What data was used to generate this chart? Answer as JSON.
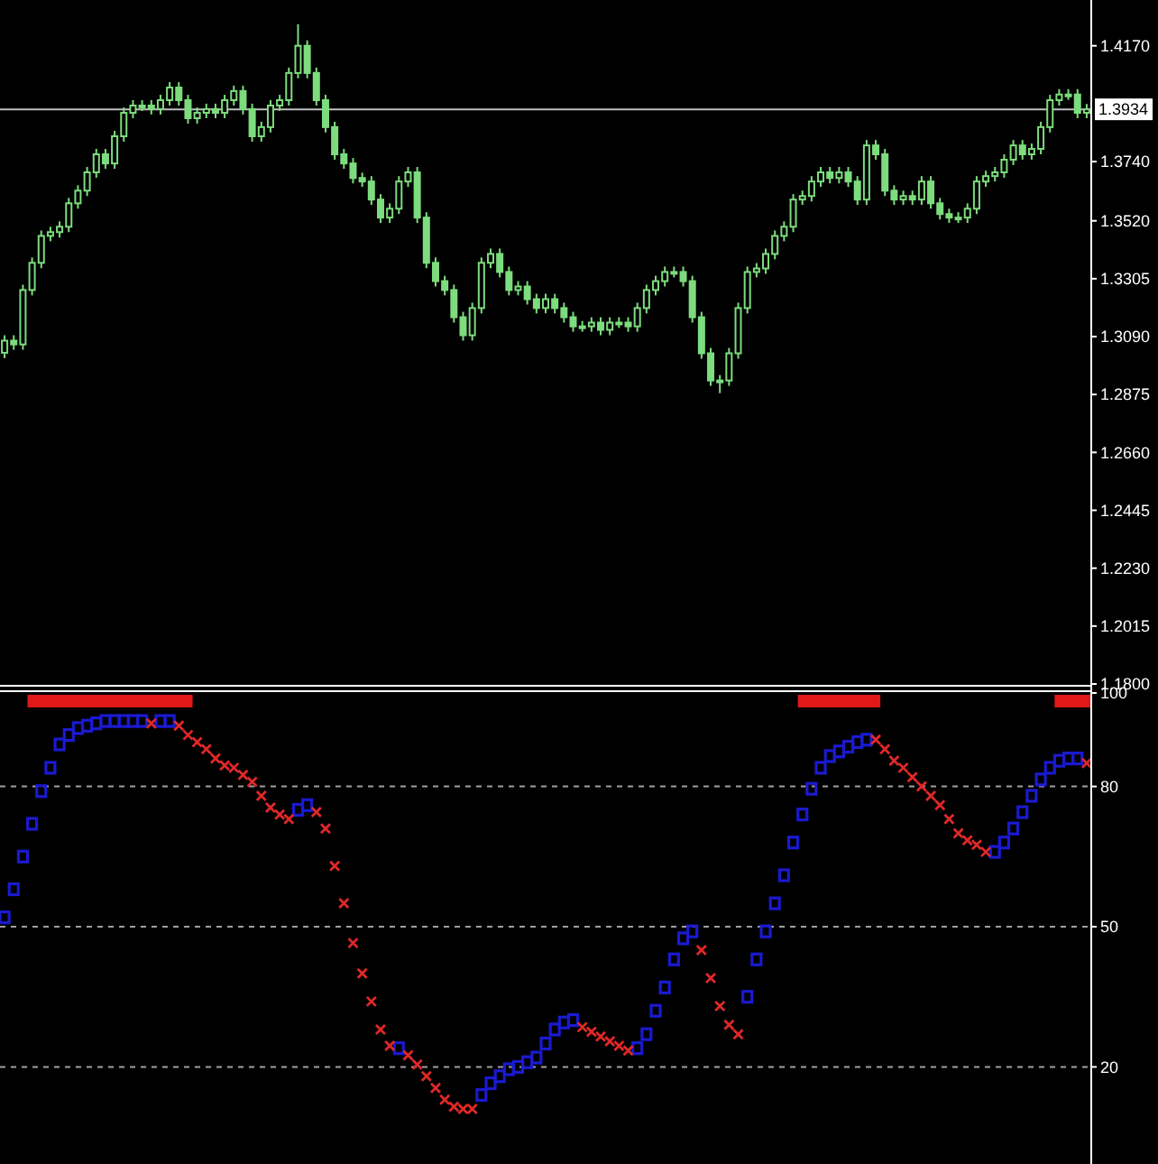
{
  "chart_data": [
    {
      "type": "candlestick",
      "color": "#7ddc7d",
      "tick_labels": "y",
      "categories": [
        null,
        null,
        null,
        null,
        null,
        null,
        null,
        null,
        null,
        null,
        null,
        null,
        null,
        null,
        null,
        null,
        null,
        null,
        null,
        null,
        null,
        null,
        null,
        null,
        null,
        null,
        null,
        null,
        null,
        null,
        null,
        null,
        null,
        null,
        null,
        null,
        null,
        null,
        null,
        null,
        null,
        null,
        null,
        null,
        null,
        null,
        null,
        null,
        null,
        null,
        null,
        null,
        null,
        null,
        null,
        null,
        null,
        null,
        null,
        null,
        null,
        null,
        null,
        null,
        null,
        null,
        null,
        null,
        null,
        null,
        null,
        null,
        null,
        null,
        null,
        null,
        null,
        null,
        null,
        null,
        null,
        null,
        null,
        null,
        null,
        null,
        null,
        null,
        null,
        null,
        null,
        null,
        null,
        null,
        null,
        null,
        null,
        null,
        null,
        null,
        null,
        null,
        null,
        null,
        null,
        null,
        null,
        null,
        null,
        null,
        null,
        null,
        null,
        null,
        null,
        null,
        null,
        null,
        null
      ],
      "ylim": [
        1.18,
        1.434
      ],
      "yticks": [
        {
          "value": 1.18,
          "label": "1.1800"
        },
        1.2015,
        {
          "value": 1.223,
          "label": "1.2230"
        },
        1.2445,
        {
          "value": 1.266,
          "label": "1.2660"
        },
        1.2875,
        {
          "value": 1.309,
          "label": "1.3090"
        },
        1.3305,
        {
          "value": 1.352,
          "label": "1.3520"
        },
        {
          "value": 1.374,
          "label": "1.3740"
        },
        {
          "value": 1.417,
          "label": "1.4170"
        }
      ],
      "ref_lines": [
        {
          "axis": "y",
          "value": 1.3934,
          "label": "1.3934",
          "color": "#c0c0c0"
        }
      ],
      "ohlc": [
        [
          1.303,
          1.3095,
          1.301,
          1.3075
        ],
        [
          1.3075,
          1.3095,
          1.3041,
          1.3061
        ],
        [
          1.3061,
          1.3283,
          1.3041,
          1.3263
        ],
        [
          1.3263,
          1.3384,
          1.3243,
          1.3364
        ],
        [
          1.3364,
          1.3484,
          1.3344,
          1.3464
        ],
        [
          1.3464,
          1.3498,
          1.3444,
          1.3478
        ],
        [
          1.3478,
          1.3518,
          1.3458,
          1.3498
        ],
        [
          1.3498,
          1.3605,
          1.3478,
          1.3585
        ],
        [
          1.3585,
          1.3652,
          1.3565,
          1.3632
        ],
        [
          1.3632,
          1.372,
          1.3612,
          1.37
        ],
        [
          1.37,
          1.3787,
          1.368,
          1.3767
        ],
        [
          1.3767,
          1.3787,
          1.3713,
          1.3733
        ],
        [
          1.3733,
          1.3854,
          1.3713,
          1.3834
        ],
        [
          1.3834,
          1.3941,
          1.3814,
          1.3921
        ],
        [
          1.3921,
          1.3968,
          1.3901,
          1.3948
        ],
        [
          1.3948,
          1.3968,
          1.3928,
          1.3948
        ],
        [
          1.3948,
          1.3968,
          1.3915,
          1.3935
        ],
        [
          1.3935,
          1.3988,
          1.3915,
          1.3968
        ],
        [
          1.3968,
          1.4035,
          1.3948,
          1.4015
        ],
        [
          1.4015,
          1.4035,
          1.3948,
          1.3968
        ],
        [
          1.3968,
          1.3988,
          1.3881,
          1.3901
        ],
        [
          1.3901,
          1.3941,
          1.3881,
          1.3921
        ],
        [
          1.3921,
          1.3955,
          1.3901,
          1.3935
        ],
        [
          1.3935,
          1.3955,
          1.3901,
          1.3921
        ],
        [
          1.3921,
          1.3988,
          1.3901,
          1.3968
        ],
        [
          1.3968,
          1.4022,
          1.3948,
          1.4002
        ],
        [
          1.4002,
          1.4022,
          1.3915,
          1.3935
        ],
        [
          1.3935,
          1.3955,
          1.3814,
          1.3834
        ],
        [
          1.3834,
          1.3888,
          1.3814,
          1.3868
        ],
        [
          1.3868,
          1.3968,
          1.3848,
          1.3948
        ],
        [
          1.3948,
          1.3988,
          1.3928,
          1.3968
        ],
        [
          1.3968,
          1.4089,
          1.3948,
          1.4069
        ],
        [
          1.4069,
          1.425,
          1.4049,
          1.417
        ],
        [
          1.417,
          1.419,
          1.4049,
          1.4069
        ],
        [
          1.4069,
          1.4089,
          1.3948,
          1.3968
        ],
        [
          1.3968,
          1.3988,
          1.3848,
          1.3868
        ],
        [
          1.3868,
          1.3888,
          1.3747,
          1.3767
        ],
        [
          1.3767,
          1.3787,
          1.3713,
          1.3733
        ],
        [
          1.3733,
          1.3753,
          1.3659,
          1.3679
        ],
        [
          1.3679,
          1.3699,
          1.3646,
          1.3666
        ],
        [
          1.3666,
          1.3686,
          1.3579,
          1.3599
        ],
        [
          1.3599,
          1.3619,
          1.3512,
          1.3532
        ],
        [
          1.3532,
          1.3585,
          1.3512,
          1.3565
        ],
        [
          1.3565,
          1.3686,
          1.3545,
          1.3666
        ],
        [
          1.3666,
          1.372,
          1.3646,
          1.37
        ],
        [
          1.37,
          1.372,
          1.3512,
          1.3532
        ],
        [
          1.3532,
          1.3552,
          1.3344,
          1.3364
        ],
        [
          1.3364,
          1.3384,
          1.3276,
          1.3296
        ],
        [
          1.3296,
          1.3316,
          1.3243,
          1.3263
        ],
        [
          1.3263,
          1.3283,
          1.3142,
          1.3162
        ],
        [
          1.3162,
          1.3182,
          1.3075,
          1.3095
        ],
        [
          1.3095,
          1.3216,
          1.3075,
          1.3196
        ],
        [
          1.3196,
          1.3384,
          1.3176,
          1.3364
        ],
        [
          1.3364,
          1.3417,
          1.3344,
          1.3397
        ],
        [
          1.3397,
          1.3417,
          1.331,
          1.333
        ],
        [
          1.333,
          1.335,
          1.3243,
          1.3263
        ],
        [
          1.3263,
          1.3296,
          1.3243,
          1.3276
        ],
        [
          1.3276,
          1.3296,
          1.3209,
          1.3229
        ],
        [
          1.3229,
          1.3249,
          1.3176,
          1.3196
        ],
        [
          1.3196,
          1.3249,
          1.3176,
          1.3229
        ],
        [
          1.3229,
          1.3249,
          1.3176,
          1.3196
        ],
        [
          1.3196,
          1.3216,
          1.3142,
          1.3162
        ],
        [
          1.3162,
          1.3182,
          1.3108,
          1.3128
        ],
        [
          1.3128,
          1.3148,
          1.3108,
          1.3128
        ],
        [
          1.3128,
          1.3162,
          1.3108,
          1.3142
        ],
        [
          1.3142,
          1.3162,
          1.3095,
          1.3115
        ],
        [
          1.3115,
          1.3162,
          1.3095,
          1.3142
        ],
        [
          1.3142,
          1.3162,
          1.3122,
          1.3142
        ],
        [
          1.3142,
          1.3162,
          1.3108,
          1.3128
        ],
        [
          1.3128,
          1.3216,
          1.3108,
          1.3196
        ],
        [
          1.3196,
          1.3283,
          1.3176,
          1.3263
        ],
        [
          1.3263,
          1.3316,
          1.3243,
          1.3296
        ],
        [
          1.3296,
          1.335,
          1.3276,
          1.333
        ],
        [
          1.333,
          1.335,
          1.331,
          1.333
        ],
        [
          1.333,
          1.335,
          1.3276,
          1.3296
        ],
        [
          1.3296,
          1.3316,
          1.3142,
          1.3162
        ],
        [
          1.3162,
          1.3182,
          1.3008,
          1.3028
        ],
        [
          1.3028,
          1.3048,
          1.2907,
          1.2927
        ],
        [
          1.2927,
          1.2947,
          1.288,
          1.2927
        ],
        [
          1.2927,
          1.3048,
          1.2907,
          1.3028
        ],
        [
          1.3028,
          1.3216,
          1.3008,
          1.3196
        ],
        [
          1.3196,
          1.335,
          1.3176,
          1.333
        ],
        [
          1.333,
          1.3363,
          1.331,
          1.3343
        ],
        [
          1.3343,
          1.3417,
          1.3323,
          1.3397
        ],
        [
          1.3397,
          1.3484,
          1.3377,
          1.3464
        ],
        [
          1.3464,
          1.3518,
          1.3444,
          1.3498
        ],
        [
          1.3498,
          1.3619,
          1.3478,
          1.3599
        ],
        [
          1.3599,
          1.3632,
          1.3579,
          1.3612
        ],
        [
          1.3612,
          1.3686,
          1.3592,
          1.3666
        ],
        [
          1.3666,
          1.372,
          1.3646,
          1.37
        ],
        [
          1.37,
          1.372,
          1.3659,
          1.3679
        ],
        [
          1.3679,
          1.372,
          1.3659,
          1.37
        ],
        [
          1.37,
          1.372,
          1.3646,
          1.3666
        ],
        [
          1.3666,
          1.3686,
          1.3579,
          1.3599
        ],
        [
          1.3599,
          1.382,
          1.3579,
          1.38
        ],
        [
          1.38,
          1.382,
          1.3747,
          1.3767
        ],
        [
          1.3767,
          1.3787,
          1.3612,
          1.3632
        ],
        [
          1.3632,
          1.3652,
          1.3579,
          1.3599
        ],
        [
          1.3599,
          1.3632,
          1.3579,
          1.3612
        ],
        [
          1.3612,
          1.3632,
          1.3579,
          1.3599
        ],
        [
          1.3599,
          1.3686,
          1.3579,
          1.3666
        ],
        [
          1.3666,
          1.3686,
          1.3565,
          1.3585
        ],
        [
          1.3585,
          1.3605,
          1.3525,
          1.3545
        ],
        [
          1.3545,
          1.3565,
          1.3512,
          1.3532
        ],
        [
          1.3532,
          1.3552,
          1.3512,
          1.3532
        ],
        [
          1.3532,
          1.3585,
          1.3512,
          1.3565
        ],
        [
          1.3565,
          1.3686,
          1.3545,
          1.3666
        ],
        [
          1.3666,
          1.3706,
          1.3646,
          1.3686
        ],
        [
          1.3686,
          1.372,
          1.3666,
          1.37
        ],
        [
          1.37,
          1.3767,
          1.368,
          1.3747
        ],
        [
          1.3747,
          1.382,
          1.3727,
          1.38
        ],
        [
          1.38,
          1.382,
          1.3747,
          1.3767
        ],
        [
          1.3767,
          1.3807,
          1.3747,
          1.3787
        ],
        [
          1.3787,
          1.3888,
          1.3767,
          1.3868
        ],
        [
          1.3868,
          1.3988,
          1.3848,
          1.3968
        ],
        [
          1.3968,
          1.4009,
          1.3948,
          1.3989
        ],
        [
          1.3989,
          1.4009,
          1.3969,
          1.3989
        ],
        [
          1.3989,
          1.4009,
          1.3901,
          1.3921
        ],
        [
          1.3921,
          1.3954,
          1.3901,
          1.3934
        ]
      ]
    },
    {
      "type": "scatter",
      "tick_labels": "y",
      "grid": "y",
      "categories": [
        null,
        null,
        null,
        null,
        null,
        null,
        null,
        null,
        null,
        null,
        null,
        null,
        null,
        null,
        null,
        null,
        null,
        null,
        null,
        null,
        null,
        null,
        null,
        null,
        null,
        null,
        null,
        null,
        null,
        null,
        null,
        null,
        null,
        null,
        null,
        null,
        null,
        null,
        null,
        null,
        null,
        null,
        null,
        null,
        null,
        null,
        null,
        null,
        null,
        null,
        null,
        null,
        null,
        null,
        null,
        null,
        null,
        null,
        null,
        null,
        null,
        null,
        null,
        null,
        null,
        null,
        null,
        null,
        null,
        null,
        null,
        null,
        null,
        null,
        null,
        null,
        null,
        null,
        null,
        null,
        null,
        null,
        null,
        null,
        null,
        null,
        null,
        null,
        null,
        null,
        null,
        null,
        null,
        null,
        null,
        null,
        null,
        null,
        null,
        null,
        null,
        null,
        null,
        null,
        null,
        null,
        null,
        null,
        null,
        null,
        null,
        null,
        null,
        null,
        null,
        null,
        null,
        null,
        null
      ],
      "ylim": [
        0,
        100
      ],
      "yticks": [
        20,
        50,
        80,
        100
      ],
      "series": [
        {
          "type": "scatter",
          "marker": "square",
          "color": "#1a1ad0",
          "values": [
            52,
            58,
            65,
            72,
            79,
            84,
            89,
            91,
            92.5,
            93,
            93.5,
            94,
            94,
            94,
            94,
            94,
            null,
            94,
            94,
            null,
            null,
            null,
            null,
            null,
            null,
            null,
            null,
            null,
            null,
            null,
            null,
            null,
            75,
            76,
            null,
            null,
            null,
            null,
            null,
            null,
            null,
            null,
            null,
            24,
            null,
            null,
            null,
            null,
            null,
            null,
            null,
            null,
            14,
            16.5,
            18,
            19.5,
            20,
            21,
            22,
            25,
            28,
            29.5,
            30,
            null,
            null,
            null,
            null,
            null,
            null,
            24,
            27,
            32,
            37,
            43,
            47.5,
            49,
            null,
            null,
            null,
            null,
            null,
            35,
            43,
            49,
            55,
            61,
            68,
            74,
            79.5,
            84,
            86.5,
            87.5,
            88.5,
            89.5,
            90,
            null,
            null,
            null,
            null,
            null,
            null,
            null,
            null,
            null,
            null,
            null,
            null,
            null,
            66,
            68,
            71,
            74.5,
            78,
            81.5,
            84,
            85.5,
            86,
            86,
            null
          ]
        },
        {
          "type": "scatter",
          "marker": "cross",
          "color": "#e02828",
          "values": [
            null,
            null,
            null,
            null,
            null,
            null,
            null,
            null,
            null,
            null,
            null,
            null,
            null,
            null,
            null,
            null,
            93.5,
            null,
            null,
            93,
            91,
            89.5,
            88,
            86,
            84.5,
            84,
            82.5,
            81,
            78,
            75.5,
            74,
            73,
            null,
            null,
            74.5,
            71,
            63,
            55,
            46.5,
            40,
            34,
            28,
            24.5,
            null,
            22.5,
            20.5,
            18,
            15.5,
            13,
            11.5,
            11,
            11,
            null,
            null,
            null,
            null,
            null,
            null,
            null,
            null,
            null,
            null,
            null,
            28.5,
            27.5,
            26.5,
            25.5,
            24.5,
            23.5,
            null,
            null,
            null,
            null,
            null,
            null,
            null,
            45,
            39,
            33,
            29,
            27,
            null,
            null,
            null,
            null,
            null,
            null,
            null,
            null,
            null,
            null,
            null,
            null,
            null,
            null,
            90,
            88,
            85.5,
            84,
            82,
            80,
            78,
            76,
            73,
            70,
            68.5,
            67.5,
            66,
            null,
            null,
            null,
            null,
            null,
            null,
            null,
            null,
            null,
            null,
            85
          ]
        }
      ]
    }
  ]
}
